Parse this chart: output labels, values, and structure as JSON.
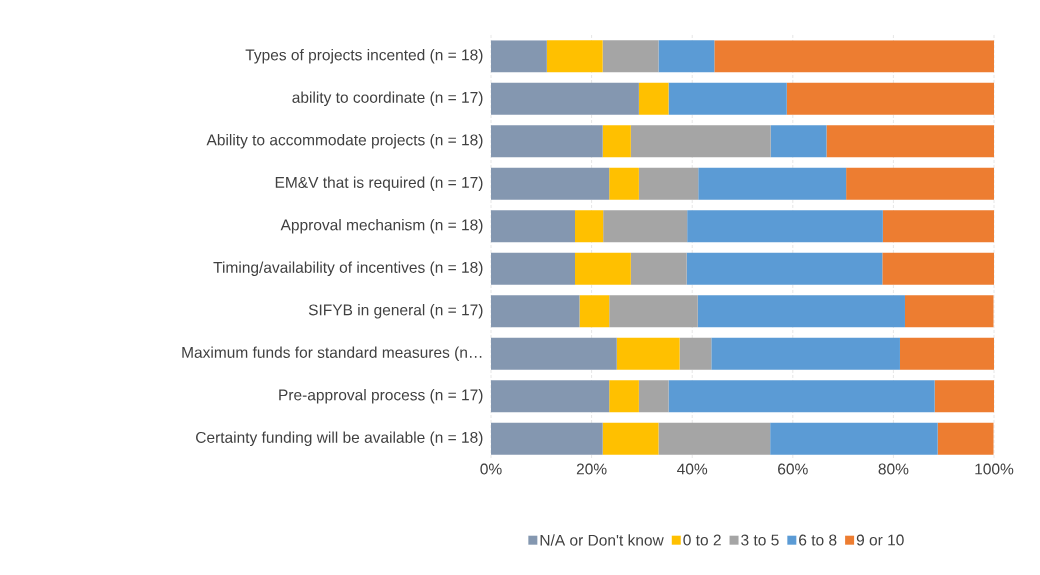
{
  "chart_data": {
    "type": "bar",
    "orientation": "horizontal",
    "stacked": true,
    "categories": [
      "Types of projects incented (n = 18)",
      "ability to coordinate (n = 17)",
      "Ability to accommodate projects (n = 18)",
      "EM&V that is required (n = 17)",
      "Approval mechanism (n = 18)",
      "Timing/availability of incentives (n = 18)",
      "SIFYB in general (n = 17)",
      "Maximum funds for standard measures (n…",
      "Pre-approval process (n = 17)",
      "Certainty funding will be available (n = 18)"
    ],
    "series": [
      {
        "name": "N/A or Don't know",
        "color": "#8497b0",
        "values": [
          11.1,
          29.4,
          22.2,
          23.5,
          16.7,
          16.7,
          17.6,
          25,
          23.5,
          22.2
        ]
      },
      {
        "name": "0 to 2",
        "color": "#ffc000",
        "values": [
          11.1,
          5.9,
          5.6,
          5.9,
          5.6,
          11.1,
          5.9,
          12.5,
          5.9,
          11.1
        ]
      },
      {
        "name": "3 to 5",
        "color": "#a5a5a5",
        "values": [
          11.1,
          0,
          27.8,
          11.8,
          16.7,
          11.1,
          17.6,
          6.3,
          5.9,
          22.2
        ]
      },
      {
        "name": "6 to 8",
        "color": "#5b9bd5",
        "values": [
          11.1,
          23.5,
          11.1,
          29.4,
          38.9,
          38.9,
          41.2,
          37.5,
          52.9,
          33.3
        ]
      },
      {
        "name": "9 or 10",
        "color": "#ed7d31",
        "values": [
          55.6,
          41.2,
          33.3,
          29.4,
          22.1,
          22.2,
          17.6,
          18.7,
          11.8,
          11.1
        ]
      }
    ],
    "xlim": [
      0,
      100
    ],
    "xticks": [
      {
        "value": 0,
        "label": "0%"
      },
      {
        "value": 20,
        "label": "20%"
      },
      {
        "value": 40,
        "label": "40%"
      },
      {
        "value": 60,
        "label": "60%"
      },
      {
        "value": 80,
        "label": "80%"
      },
      {
        "value": 100,
        "label": "100%"
      }
    ],
    "grid": "x",
    "legend": "bottom"
  }
}
